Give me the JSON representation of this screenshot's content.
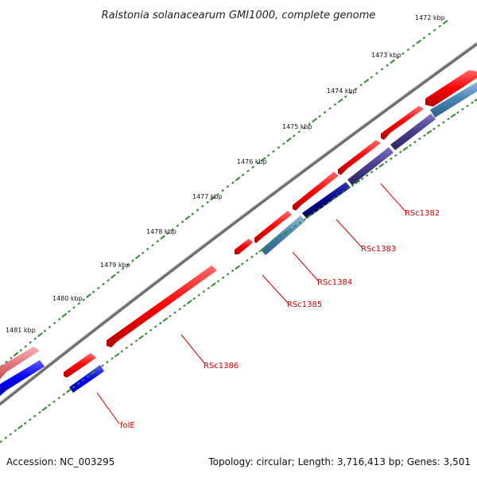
{
  "title": "Ralstonia solanacearum GMI1000, complete genome",
  "footer": {
    "accession": "Accession: NC_003295",
    "summary": "Topology: circular; Length: 3,716,413 bp; Genes: 3,501"
  },
  "kbp_labels": [
    "1472 kbp",
    "1473 kbp",
    "1474 kbp",
    "1475 kbp",
    "1476 kbp",
    "1477 kbp",
    "1478 kbp",
    "1479 kbp",
    "1480 kbp",
    "1481 kbp"
  ],
  "gene_labels": [
    "RSc1382",
    "RSc1383",
    "RSc1384",
    "RSc1385",
    "RSc1386",
    "folE"
  ],
  "colors": {
    "backbone": "#808080",
    "forward_cds": "#ff0000",
    "reverse_cds_light": "#4682b4",
    "reverse_cds_dark": "#00008b",
    "reverse_cds_mid": "#483d8b",
    "blue_cds": "#0000ff",
    "pink_cds": "#e8777d",
    "ticks": "#2e8b2e",
    "label_red": "#cc0000"
  }
}
